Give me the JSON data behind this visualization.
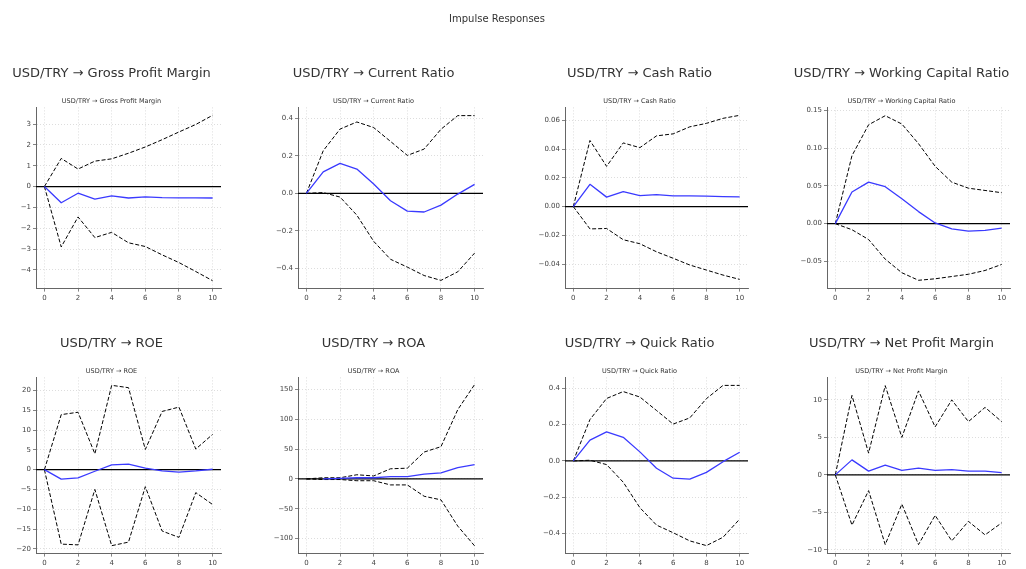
{
  "chart_data": [
    {
      "type": "other",
      "title": "Impulse Responses"
    },
    {
      "type": "line",
      "title": "USD/TRY → Gross Profit Margin",
      "subtitle": "USD/TRY → Gross Profit Margin",
      "x": [
        0,
        1,
        2,
        3,
        4,
        5,
        6,
        7,
        8,
        9,
        10
      ],
      "xlim": [
        -0.5,
        10.5
      ],
      "xticks": [
        0,
        2,
        4,
        6,
        8,
        10
      ],
      "ylim": [
        -4.9,
        3.8
      ],
      "yticks": [
        {
          "value": -4,
          "label": "−4"
        },
        {
          "value": -3,
          "label": "−3"
        },
        {
          "value": -2,
          "label": "−2"
        },
        {
          "value": -1,
          "label": "−1"
        },
        0,
        1,
        2,
        3
      ],
      "grid": true,
      "series": [
        {
          "color": "#3a3aff",
          "values": [
            0,
            -0.78,
            -0.32,
            -0.6,
            -0.45,
            -0.55,
            -0.5,
            -0.53,
            -0.54,
            -0.54,
            -0.55
          ]
        },
        {
          "color": "#000000",
          "line_style": "dashed",
          "values": [
            0,
            1.35,
            0.84,
            1.22,
            1.33,
            1.6,
            1.9,
            2.25,
            2.62,
            2.98,
            3.42
          ]
        },
        {
          "color": "#000000",
          "line_style": "dashed",
          "values": [
            0,
            -2.9,
            -1.46,
            -2.45,
            -2.2,
            -2.7,
            -2.88,
            -3.28,
            -3.65,
            -4.08,
            -4.52
          ]
        }
      ],
      "ref_lines": [
        {
          "axis": "y",
          "value": 0,
          "color": "#000000"
        }
      ]
    },
    {
      "type": "line",
      "title": "USD/TRY → Current Ratio",
      "subtitle": "USD/TRY → Current Ratio",
      "x": [
        0,
        1,
        2,
        3,
        4,
        5,
        6,
        7,
        8,
        9,
        10
      ],
      "xlim": [
        -0.5,
        10.5
      ],
      "xticks": [
        0,
        2,
        4,
        6,
        8,
        10
      ],
      "ylim": [
        -0.51,
        0.46
      ],
      "yticks": [
        {
          "value": -0.4,
          "label": "−0.4"
        },
        {
          "value": -0.2,
          "label": "−0.2"
        },
        {
          "value": 0,
          "label": "0.0"
        },
        0.2,
        0.4
      ],
      "grid": true,
      "series": [
        {
          "color": "#3a3aff",
          "values": [
            0,
            0.115,
            0.16,
            0.13,
            0.05,
            -0.04,
            -0.095,
            -0.1,
            -0.063,
            -0.004,
            0.048
          ]
        },
        {
          "color": "#000000",
          "line_style": "dashed",
          "values": [
            0,
            0.228,
            0.344,
            0.382,
            0.352,
            0.278,
            0.203,
            0.237,
            0.343,
            0.416,
            0.416
          ]
        },
        {
          "color": "#000000",
          "line_style": "dashed",
          "values": [
            0,
            0.004,
            -0.02,
            -0.117,
            -0.257,
            -0.353,
            -0.395,
            -0.44,
            -0.466,
            -0.42,
            -0.32
          ]
        }
      ],
      "ref_lines": [
        {
          "axis": "y",
          "value": 0,
          "color": "#000000"
        }
      ]
    },
    {
      "type": "line",
      "title": "USD/TRY → Cash Ratio",
      "subtitle": "USD/TRY → Cash Ratio",
      "x": [
        0,
        1,
        2,
        3,
        4,
        5,
        6,
        7,
        8,
        9,
        10
      ],
      "xlim": [
        -0.5,
        10.5
      ],
      "xticks": [
        0,
        2,
        4,
        6,
        8,
        10
      ],
      "ylim": [
        -0.057,
        0.069
      ],
      "yticks": [
        {
          "value": -0.04,
          "label": "−0.04"
        },
        {
          "value": -0.02,
          "label": "−0.02"
        },
        {
          "value": 0,
          "label": "0.00"
        },
        0.02,
        0.04,
        0.06
      ],
      "grid": true,
      "series": [
        {
          "color": "#3a3aff",
          "values": [
            0,
            0.0155,
            0.0066,
            0.0105,
            0.0077,
            0.0084,
            0.0075,
            0.0075,
            0.0073,
            0.007,
            0.0068
          ]
        },
        {
          "color": "#000000",
          "line_style": "dashed",
          "values": [
            0,
            0.046,
            0.028,
            0.0443,
            0.041,
            0.0492,
            0.0506,
            0.0555,
            0.0579,
            0.0614,
            0.0635
          ]
        },
        {
          "color": "#000000",
          "line_style": "dashed",
          "values": [
            0,
            -0.0155,
            -0.0152,
            -0.023,
            -0.0258,
            -0.0314,
            -0.0359,
            -0.0406,
            -0.0441,
            -0.0476,
            -0.0506
          ]
        }
      ],
      "ref_lines": [
        {
          "axis": "y",
          "value": 0,
          "color": "#000000"
        }
      ]
    },
    {
      "type": "line",
      "title": "USD/TRY → Working Capital Ratio",
      "subtitle": "USD/TRY → Working Capital Ratio",
      "x": [
        0,
        1,
        2,
        3,
        4,
        5,
        6,
        7,
        8,
        9,
        10
      ],
      "xlim": [
        -0.5,
        10.5
      ],
      "xticks": [
        0,
        2,
        4,
        6,
        8,
        10
      ],
      "ylim": [
        -0.086,
        0.154
      ],
      "yticks": [
        {
          "value": -0.05,
          "label": "−0.05"
        },
        {
          "value": 0,
          "label": "0.00"
        },
        0.05,
        {
          "value": 0.1,
          "label": "0.10"
        },
        0.15
      ],
      "grid": true,
      "series": [
        {
          "color": "#3a3aff",
          "values": [
            0,
            0.042,
            0.055,
            0.049,
            0.033,
            0.016,
            0.001,
            -0.007,
            -0.01,
            -0.009,
            -0.006
          ]
        },
        {
          "color": "#000000",
          "line_style": "dashed",
          "values": [
            0,
            0.09,
            0.131,
            0.143,
            0.132,
            0.106,
            0.076,
            0.055,
            0.047,
            0.044,
            0.041
          ]
        },
        {
          "color": "#000000",
          "line_style": "dashed",
          "values": [
            0,
            -0.008,
            -0.021,
            -0.047,
            -0.065,
            -0.075,
            -0.073,
            -0.07,
            -0.067,
            -0.062,
            -0.054
          ]
        }
      ],
      "ref_lines": [
        {
          "axis": "y",
          "value": 0,
          "color": "#000000"
        }
      ]
    },
    {
      "type": "line",
      "title": "USD/TRY → ROE",
      "subtitle": "USD/TRY → ROE",
      "x": [
        0,
        1,
        2,
        3,
        4,
        5,
        6,
        7,
        8,
        9,
        10
      ],
      "xlim": [
        -0.5,
        10.5
      ],
      "xticks": [
        0,
        2,
        4,
        6,
        8,
        10
      ],
      "ylim": [
        -21.2,
        23.3
      ],
      "yticks": [
        {
          "value": -20,
          "label": "−20"
        },
        {
          "value": -15,
          "label": "−15"
        },
        {
          "value": -10,
          "label": "−10"
        },
        {
          "value": -5,
          "label": "−5"
        },
        0,
        5,
        10,
        15,
        20
      ],
      "grid": true,
      "series": [
        {
          "color": "#3a3aff",
          "values": [
            0,
            -2.4,
            -2.1,
            -0.4,
            1.2,
            1.4,
            0.4,
            -0.3,
            -0.6,
            -0.3,
            0.1
          ]
        },
        {
          "color": "#000000",
          "line_style": "dashed",
          "values": [
            0,
            13.9,
            14.5,
            4,
            21.3,
            20.7,
            5.1,
            14.7,
            15.8,
            5.2,
            8.9
          ]
        },
        {
          "color": "#000000",
          "line_style": "dashed",
          "values": [
            0,
            -18.8,
            -19,
            -5,
            -19.2,
            -18.3,
            -4.3,
            -15.5,
            -17.1,
            -5.8,
            -8.8
          ]
        }
      ],
      "ref_lines": [
        {
          "axis": "y",
          "value": 0,
          "color": "#000000"
        }
      ]
    },
    {
      "type": "line",
      "title": "USD/TRY → ROA",
      "subtitle": "USD/TRY → ROA",
      "x": [
        0,
        1,
        2,
        3,
        4,
        5,
        6,
        7,
        8,
        9,
        10
      ],
      "xlim": [
        -0.5,
        10.5
      ],
      "xticks": [
        0,
        2,
        4,
        6,
        8,
        10
      ],
      "ylim": [
        -125,
        170
      ],
      "yticks": [
        {
          "value": -100,
          "label": "−100"
        },
        {
          "value": -50,
          "label": "−50"
        },
        0,
        50,
        100,
        150
      ],
      "grid": true,
      "series": [
        {
          "color": "#3a3aff",
          "values": [
            null,
            0,
            1,
            2,
            2,
            4,
            4,
            8,
            10,
            19,
            24
          ]
        },
        {
          "color": "#000000",
          "line_style": "dashed",
          "values": [
            0,
            2,
            2,
            7,
            5,
            17,
            18,
            45,
            54,
            116,
            158
          ]
        },
        {
          "color": "#000000",
          "line_style": "dashed",
          "values": [
            0,
            -1,
            -1,
            -3,
            -3,
            -10,
            -10,
            -29,
            -35,
            -79,
            -112
          ]
        }
      ],
      "ref_lines": [
        {
          "axis": "y",
          "value": 0,
          "color": "#000000"
        }
      ]
    },
    {
      "type": "line",
      "title": "USD/TRY → Quick Ratio",
      "subtitle": "USD/TRY → Quick Ratio",
      "x": [
        0,
        1,
        2,
        3,
        4,
        5,
        6,
        7,
        8,
        9,
        10
      ],
      "xlim": [
        -0.5,
        10.5
      ],
      "xticks": [
        0,
        2,
        4,
        6,
        8,
        10
      ],
      "ylim": [
        -0.51,
        0.46
      ],
      "yticks": [
        {
          "value": -0.4,
          "label": "−0.4"
        },
        {
          "value": -0.2,
          "label": "−0.2"
        },
        {
          "value": 0,
          "label": "0.0"
        },
        0.2,
        0.4
      ],
      "grid": true,
      "series": [
        {
          "color": "#3a3aff",
          "values": [
            0,
            0.115,
            0.16,
            0.13,
            0.05,
            -0.04,
            -0.095,
            -0.1,
            -0.063,
            -0.004,
            0.048
          ]
        },
        {
          "color": "#000000",
          "line_style": "dashed",
          "values": [
            0,
            0.228,
            0.344,
            0.382,
            0.352,
            0.278,
            0.203,
            0.237,
            0.343,
            0.416,
            0.416
          ]
        },
        {
          "color": "#000000",
          "line_style": "dashed",
          "values": [
            0,
            0.004,
            -0.02,
            -0.117,
            -0.257,
            -0.353,
            -0.395,
            -0.44,
            -0.466,
            -0.42,
            -0.32
          ]
        }
      ],
      "ref_lines": [
        {
          "axis": "y",
          "value": 0,
          "color": "#000000"
        }
      ]
    },
    {
      "type": "line",
      "title": "USD/TRY → Net Profit Margin",
      "subtitle": "USD/TRY → Net Profit Margin",
      "x": [
        0,
        1,
        2,
        3,
        4,
        5,
        6,
        7,
        8,
        9,
        10
      ],
      "xlim": [
        -0.5,
        10.5
      ],
      "xticks": [
        0,
        2,
        4,
        6,
        8,
        10
      ],
      "ylim": [
        -10.5,
        13
      ],
      "yticks": [
        {
          "value": -10,
          "label": "−10"
        },
        {
          "value": -5,
          "label": "−5"
        },
        0,
        5,
        10
      ],
      "grid": true,
      "series": [
        {
          "color": "#3a3aff",
          "values": [
            0,
            2,
            0.5,
            1.3,
            0.6,
            0.9,
            0.6,
            0.7,
            0.5,
            0.5,
            0.3
          ]
        },
        {
          "color": "#000000",
          "line_style": "dashed",
          "values": [
            0,
            10.6,
            2.9,
            11.9,
            5,
            11.2,
            6.4,
            10,
            7.1,
            9,
            7.1
          ]
        },
        {
          "color": "#000000",
          "line_style": "dashed",
          "values": [
            0,
            -6.7,
            -2.1,
            -9.3,
            -3.9,
            -9.3,
            -5.4,
            -8.8,
            -6.2,
            -8,
            -6.4
          ]
        }
      ],
      "ref_lines": [
        {
          "axis": "y",
          "value": 0,
          "color": "#000000"
        }
      ]
    }
  ]
}
